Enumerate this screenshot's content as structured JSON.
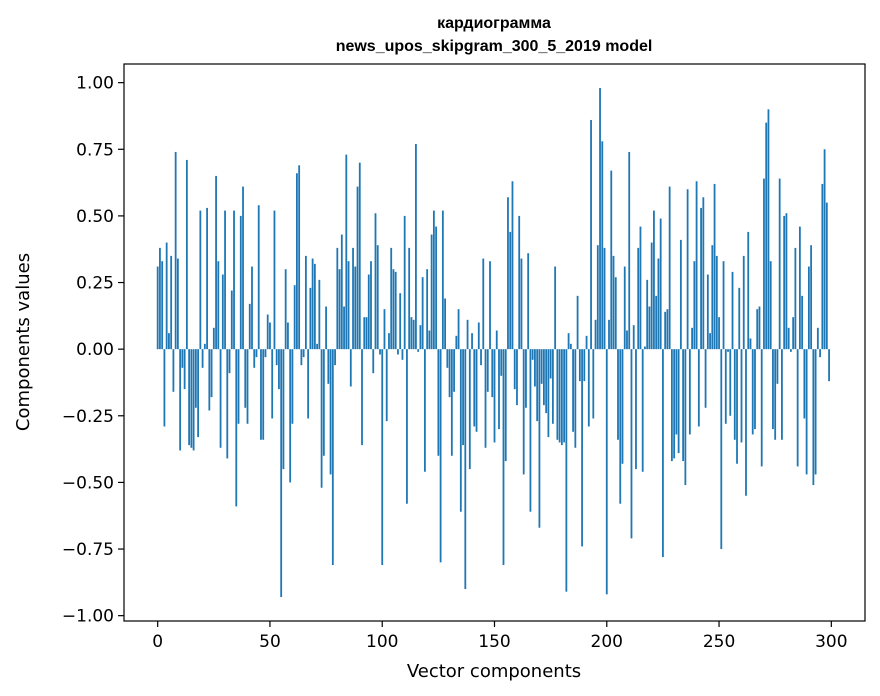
{
  "chart_data": {
    "type": "bar",
    "title_line1": "кардиограмма",
    "title_line2": "news_upos_skipgram_300_5_2019 model",
    "xlabel": "Vector components",
    "ylabel": "Components values",
    "xlim": [
      -15,
      315
    ],
    "ylim": [
      -1.02,
      1.07
    ],
    "xticks": [
      0,
      50,
      100,
      150,
      200,
      250,
      300
    ],
    "yticks": [
      -1.0,
      -0.75,
      -0.5,
      -0.25,
      0.0,
      0.25,
      0.5,
      0.75,
      1.0
    ],
    "ytick_labels": [
      "−1.00",
      "−0.75",
      "−0.50",
      "−0.25",
      "0.00",
      "0.25",
      "0.50",
      "0.75",
      "1.00"
    ],
    "xtick_labels": [
      "0",
      "50",
      "100",
      "150",
      "200",
      "250",
      "300"
    ],
    "bar_color": "#1f77b4",
    "x": [
      0,
      1,
      2,
      3,
      4,
      5,
      6,
      7,
      8,
      9,
      10,
      11,
      12,
      13,
      14,
      15,
      16,
      17,
      18,
      19,
      20,
      21,
      22,
      23,
      24,
      25,
      26,
      27,
      28,
      29,
      30,
      31,
      32,
      33,
      34,
      35,
      36,
      37,
      38,
      39,
      40,
      41,
      42,
      43,
      44,
      45,
      46,
      47,
      48,
      49,
      50,
      51,
      52,
      53,
      54,
      55,
      56,
      57,
      58,
      59,
      60,
      61,
      62,
      63,
      64,
      65,
      66,
      67,
      68,
      69,
      70,
      71,
      72,
      73,
      74,
      75,
      76,
      77,
      78,
      79,
      80,
      81,
      82,
      83,
      84,
      85,
      86,
      87,
      88,
      89,
      90,
      91,
      92,
      93,
      94,
      95,
      96,
      97,
      98,
      99,
      100,
      101,
      102,
      103,
      104,
      105,
      106,
      107,
      108,
      109,
      110,
      111,
      112,
      113,
      114,
      115,
      116,
      117,
      118,
      119,
      120,
      121,
      122,
      123,
      124,
      125,
      126,
      127,
      128,
      129,
      130,
      131,
      132,
      133,
      134,
      135,
      136,
      137,
      138,
      139,
      140,
      141,
      142,
      143,
      144,
      145,
      146,
      147,
      148,
      149,
      150,
      151,
      152,
      153,
      154,
      155,
      156,
      157,
      158,
      159,
      160,
      161,
      162,
      163,
      164,
      165,
      166,
      167,
      168,
      169,
      170,
      171,
      172,
      173,
      174,
      175,
      176,
      177,
      178,
      179,
      180,
      181,
      182,
      183,
      184,
      185,
      186,
      187,
      188,
      189,
      190,
      191,
      192,
      193,
      194,
      195,
      196,
      197,
      198,
      199,
      200,
      201,
      202,
      203,
      204,
      205,
      206,
      207,
      208,
      209,
      210,
      211,
      212,
      213,
      214,
      215,
      216,
      217,
      218,
      219,
      220,
      221,
      222,
      223,
      224,
      225,
      226,
      227,
      228,
      229,
      230,
      231,
      232,
      233,
      234,
      235,
      236,
      237,
      238,
      239,
      240,
      241,
      242,
      243,
      244,
      245,
      246,
      247,
      248,
      249,
      250,
      251,
      252,
      253,
      254,
      255,
      256,
      257,
      258,
      259,
      260,
      261,
      262,
      263,
      264,
      265,
      266,
      267,
      268,
      269,
      270,
      271,
      272,
      273,
      274,
      275,
      276,
      277,
      278,
      279,
      280,
      281,
      282,
      283,
      284,
      285,
      286,
      287,
      288,
      289,
      290,
      291,
      292,
      293,
      294,
      295,
      296,
      297,
      298,
      299
    ],
    "values": [
      0.31,
      0.38,
      0.33,
      -0.29,
      0.4,
      0.06,
      0.35,
      -0.16,
      0.74,
      0.34,
      -0.38,
      -0.07,
      -0.15,
      0.71,
      -0.36,
      -0.37,
      -0.38,
      -0.22,
      -0.33,
      0.52,
      -0.07,
      0.02,
      0.53,
      -0.23,
      -0.18,
      0.08,
      0.65,
      0.33,
      -0.37,
      0.28,
      0.52,
      -0.41,
      -0.09,
      0.22,
      0.52,
      -0.59,
      -0.28,
      0.5,
      0.61,
      -0.22,
      -0.28,
      0.17,
      0.31,
      -0.07,
      -0.03,
      0.54,
      -0.34,
      -0.34,
      -0.03,
      0.13,
      0.1,
      -0.26,
      0.52,
      -0.06,
      -0.15,
      -0.93,
      -0.45,
      0.3,
      0.1,
      -0.5,
      -0.28,
      0.24,
      0.66,
      0.69,
      -0.06,
      -0.03,
      0.35,
      -0.26,
      0.23,
      0.34,
      0.32,
      0.02,
      0.26,
      -0.52,
      -0.4,
      0.16,
      -0.13,
      -0.47,
      -0.81,
      -0.06,
      0.38,
      0.3,
      0.43,
      0.16,
      0.73,
      0.33,
      -0.14,
      0.38,
      0.31,
      0.61,
      0.7,
      -0.36,
      0.12,
      0.12,
      0.28,
      0.33,
      -0.09,
      0.51,
      0.39,
      -0.02,
      -0.81,
      0.15,
      -0.27,
      0.06,
      0.38,
      0.3,
      0.29,
      -0.02,
      0.21,
      -0.04,
      0.5,
      -0.58,
      0.38,
      0.12,
      0.11,
      0.77,
      -0.01,
      0.09,
      0.27,
      -0.46,
      0.3,
      0.07,
      0.43,
      0.52,
      0.46,
      -0.4,
      -0.8,
      0.52,
      0.19,
      -0.07,
      -0.18,
      -0.4,
      -0.16,
      0.05,
      0.15,
      -0.61,
      -0.36,
      -0.9,
      0.11,
      -0.45,
      0.06,
      -0.29,
      -0.31,
      0.1,
      -0.06,
      0.34,
      -0.37,
      -0.16,
      0.33,
      -0.18,
      -0.35,
      0.07,
      -0.3,
      -0.1,
      -0.81,
      -0.42,
      0.57,
      0.44,
      0.63,
      -0.15,
      -0.21,
      0.5,
      0.34,
      -0.47,
      -0.22,
      0.36,
      -0.61,
      -0.04,
      -0.14,
      -0.27,
      -0.67,
      -0.13,
      -0.21,
      -0.24,
      -0.33,
      -0.11,
      -0.28,
      0.31,
      -0.34,
      -0.35,
      -0.36,
      -0.35,
      -0.91,
      0.06,
      0.02,
      -0.31,
      -0.37,
      0.2,
      -0.12,
      -0.74,
      -0.12,
      0.05,
      -0.29,
      0.86,
      -0.26,
      0.11,
      0.39,
      0.98,
      0.78,
      0.38,
      -0.92,
      0.11,
      0.67,
      0.35,
      0.27,
      -0.34,
      -0.58,
      -0.43,
      0.31,
      0.07,
      0.74,
      -0.71,
      0.09,
      -0.45,
      0.38,
      0.46,
      -0.46,
      0.01,
      0.26,
      0.16,
      0.4,
      0.52,
      0.2,
      0.34,
      0.49,
      -0.78,
      0.14,
      0.15,
      0.61,
      -0.42,
      -0.41,
      -0.32,
      -0.39,
      0.41,
      -0.42,
      -0.51,
      0.6,
      -0.32,
      0.08,
      0.33,
      0.63,
      -0.29,
      0.53,
      0.57,
      -0.22,
      0.28,
      0.06,
      0.39,
      0.62,
      0.35,
      0.12,
      -0.75,
      0.33,
      -0.28,
      -0.01,
      -0.25,
      0.29,
      -0.34,
      -0.43,
      0.23,
      -0.35,
      0.35,
      -0.55,
      0.44,
      0.04,
      -0.32,
      -0.3,
      0.15,
      0.16,
      -0.44,
      0.64,
      0.85,
      0.9,
      0.33,
      -0.3,
      -0.34,
      -0.13,
      0.64,
      -0.34,
      0.5,
      0.51,
      0.08,
      -0.01,
      0.12,
      0.38,
      -0.44,
      0.46,
      0.2,
      -0.26,
      -0.47,
      0.31,
      0.39,
      -0.51,
      -0.47,
      0.08,
      -0.03,
      0.62,
      0.75,
      0.55,
      -0.12
    ]
  }
}
